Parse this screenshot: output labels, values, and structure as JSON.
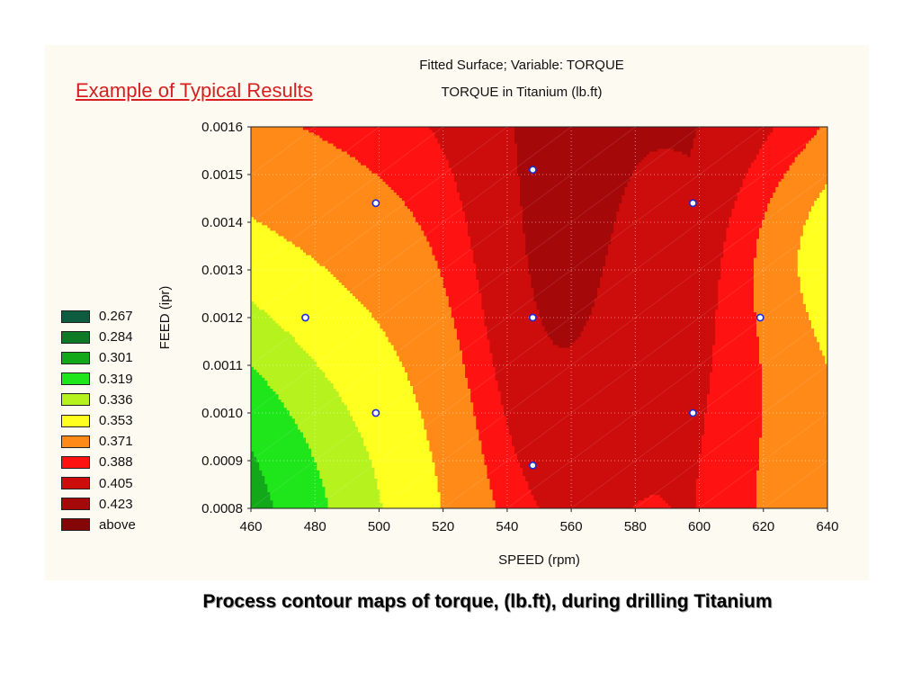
{
  "slide": {
    "headline": "Example of Typical Results",
    "caption": "Process contour maps of torque, (lb.ft), during drilling Titanium"
  },
  "chart_data": {
    "type": "contour",
    "title": "Fitted Surface; Variable: TORQUE",
    "subtitle": "TORQUE in Titanium (lb.ft)",
    "xlabel": "SPEED (rpm)",
    "ylabel": "FEED (ipr)",
    "xlim": [
      460,
      640
    ],
    "ylim": [
      0.0008,
      0.0016
    ],
    "xticks": [
      "460",
      "480",
      "500",
      "520",
      "540",
      "560",
      "580",
      "600",
      "620",
      "640"
    ],
    "yticks": [
      "0.0008",
      "0.0009",
      "0.0010",
      "0.0011",
      "0.0012",
      "0.0013",
      "0.0014",
      "0.0015",
      "0.0016"
    ],
    "grid": true,
    "legend_position": "left",
    "legend": [
      {
        "label": "0.267",
        "color": "#0d5c3f"
      },
      {
        "label": "0.284",
        "color": "#0e7a26"
      },
      {
        "label": "0.301",
        "color": "#12a81a"
      },
      {
        "label": "0.319",
        "color": "#1ee61a"
      },
      {
        "label": "0.336",
        "color": "#b6f21e"
      },
      {
        "label": "0.353",
        "color": "#ffff20"
      },
      {
        "label": "0.371",
        "color": "#ff8a18"
      },
      {
        "label": "0.388",
        "color": "#ff1212"
      },
      {
        "label": "0.405",
        "color": "#cd0c0c"
      },
      {
        "label": "0.423",
        "color": "#a50808"
      },
      {
        "label": "above",
        "color": "#850606"
      }
    ],
    "design_points": [
      {
        "x": 548,
        "y": 0.00151
      },
      {
        "x": 499,
        "y": 0.00144
      },
      {
        "x": 598,
        "y": 0.00144
      },
      {
        "x": 477,
        "y": 0.0012
      },
      {
        "x": 548,
        "y": 0.0012
      },
      {
        "x": 619,
        "y": 0.0012
      },
      {
        "x": 499,
        "y": 0.001
      },
      {
        "x": 598,
        "y": 0.001
      },
      {
        "x": 548,
        "y": 0.00089
      }
    ]
  }
}
